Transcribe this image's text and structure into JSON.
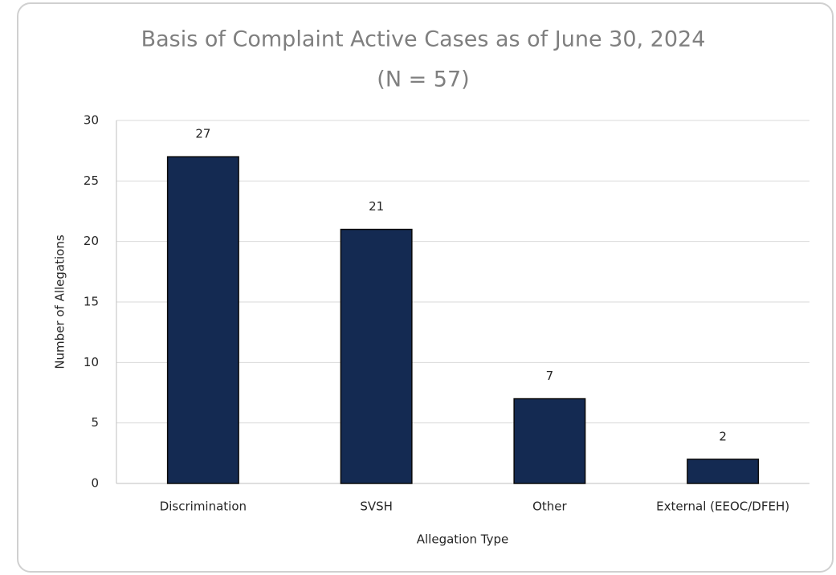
{
  "chart_data": {
    "type": "bar",
    "title": "Basis of Complaint Active Cases as of June 30, 2024",
    "subtitle": "(N = 57)",
    "x_label": "Allegation Type",
    "y_label": "Number of Allegations",
    "categories": [
      "Discrimination",
      "SVSH",
      "Other",
      "External (EEOC/DFEH)"
    ],
    "values": [
      27,
      21,
      7,
      2
    ],
    "color": "#142a52",
    "ylim": [
      0,
      30
    ],
    "yticks": [
      0,
      5,
      10,
      15,
      20,
      25,
      30
    ],
    "grid": true
  }
}
